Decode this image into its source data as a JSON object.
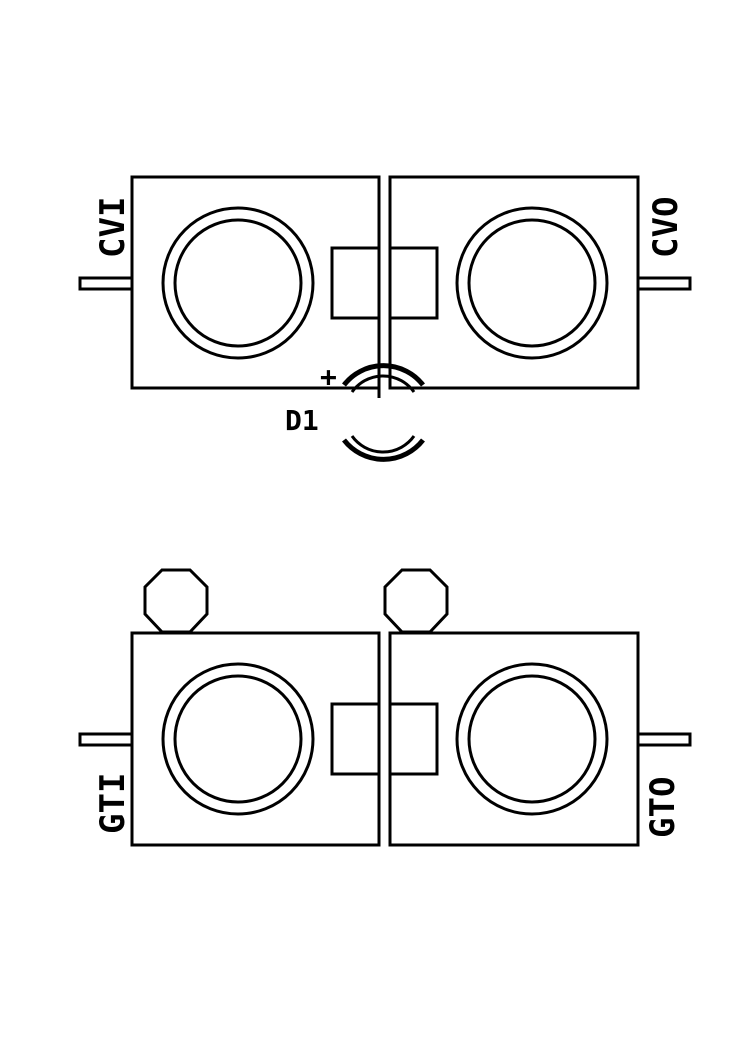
{
  "labels": {
    "cvi": "CVI",
    "cvo": "CVO",
    "gti": "GTI",
    "gto": "GTO",
    "d1": "D1",
    "plus": "+"
  },
  "colors": {
    "ink": "#000000",
    "background": "#ffffff"
  }
}
